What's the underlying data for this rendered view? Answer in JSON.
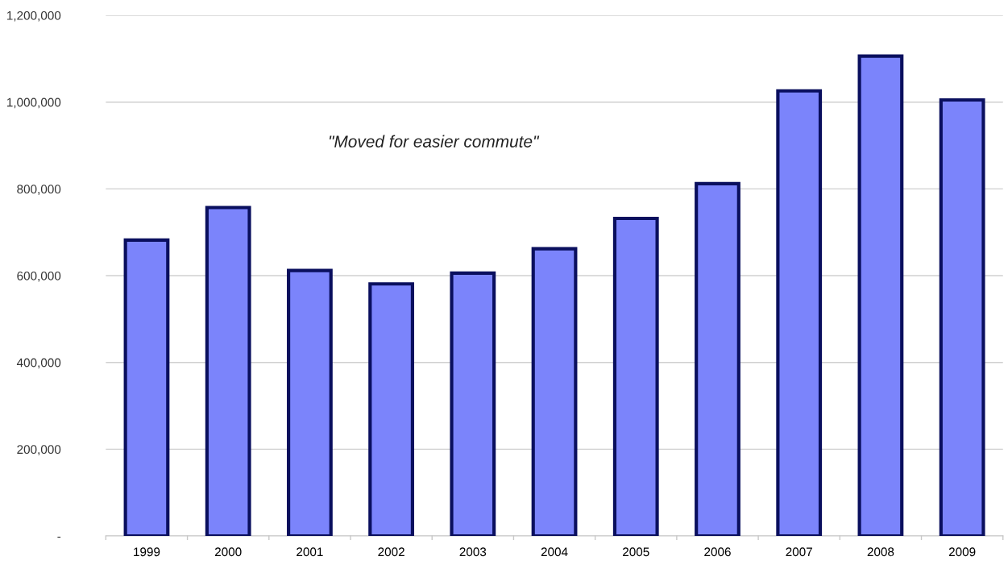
{
  "chart_data": {
    "type": "bar",
    "categories": [
      "1999",
      "2000",
      "2001",
      "2002",
      "2003",
      "2004",
      "2005",
      "2006",
      "2007",
      "2008",
      "2009"
    ],
    "values": [
      682000,
      757000,
      612000,
      581000,
      606000,
      662000,
      732000,
      812000,
      1026000,
      1106000,
      1005000
    ],
    "color": "#7b84fb",
    "ylim": [
      0,
      1200000
    ],
    "yticks": [
      {
        "value": 0,
        "label": "-"
      },
      {
        "value": 200000,
        "label": "200,000"
      },
      {
        "value": 400000,
        "label": "400,000"
      },
      {
        "value": 600000,
        "label": "600,000"
      },
      {
        "value": 800000,
        "label": "800,000"
      },
      {
        "value": 1000000,
        "label": "1,000,000"
      },
      {
        "value": 1200000,
        "label": "1,200,000"
      }
    ],
    "annotations": [
      "\"Moved for easier commute\""
    ],
    "grid": "y"
  }
}
